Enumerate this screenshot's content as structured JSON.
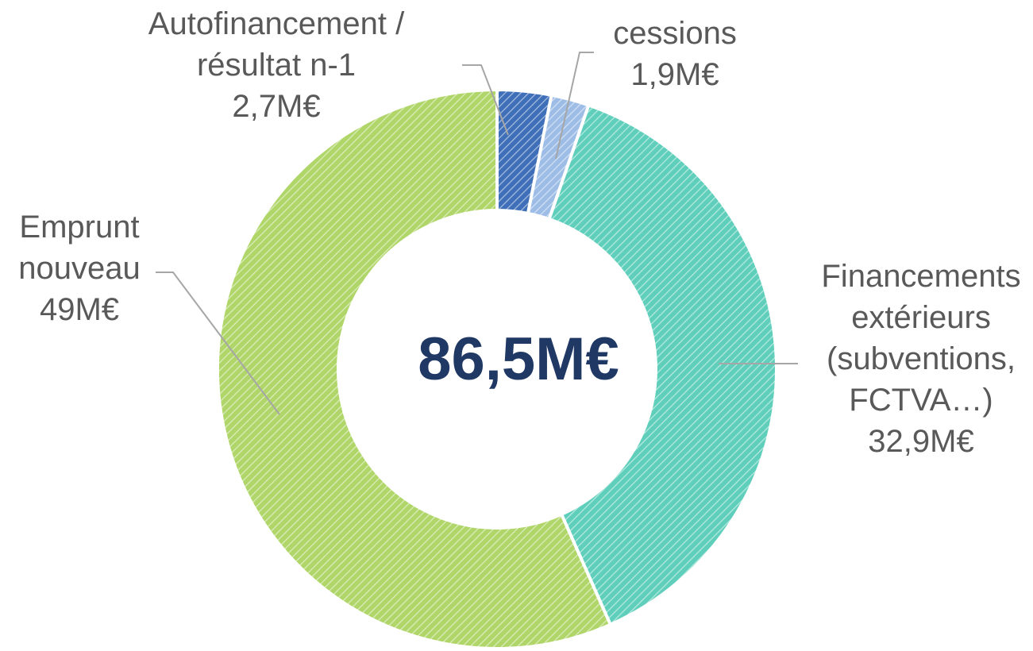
{
  "chart_data": {
    "type": "donut",
    "categories": [
      "Autofinancement / résultat n-1",
      "cessions",
      "Financements extérieurs (subventions, FCTVA…)",
      "Emprunt nouveau"
    ],
    "values": [
      2.7,
      1.9,
      32.9,
      49
    ],
    "value_labels": [
      "2,7M€",
      "1,9M€",
      "32,9M€",
      "49M€"
    ],
    "colors": [
      "#3f6fb8",
      "#9dbde6",
      "#5fcfbb",
      "#b0d66a"
    ],
    "total_label": "86,5M€"
  }
}
